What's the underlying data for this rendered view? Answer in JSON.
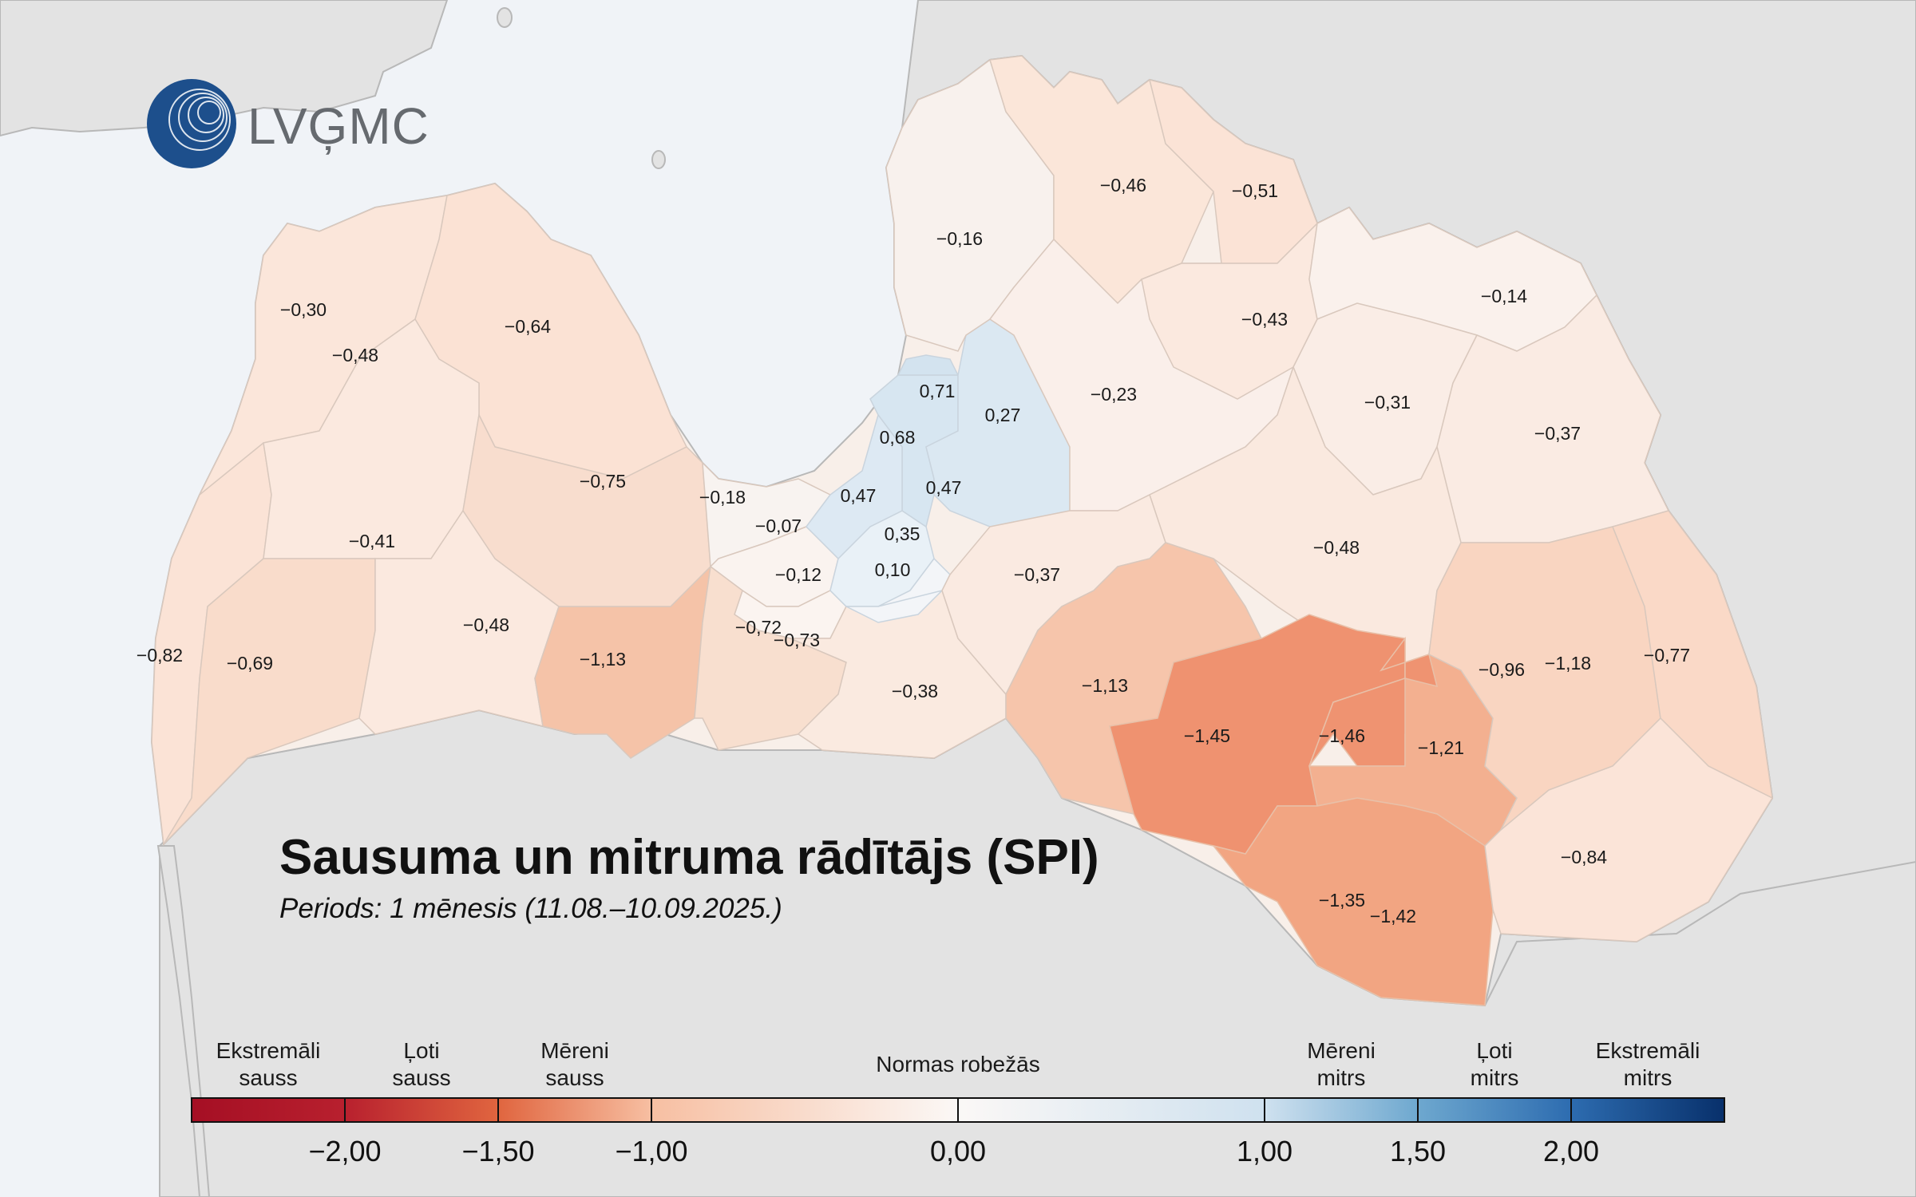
{
  "logo": {
    "text": "LVĢMC"
  },
  "title": "Sausuma un mitruma rādītājs (SPI)",
  "subtitle": "Periods: 1 mēnesis (11.08.–10.09.2025.)",
  "colors": {
    "sea": "#f0f3f7",
    "neighbor_land": "#e3e3e3",
    "border": "#b8b8b8",
    "logo_blue": "#1d4f8c"
  },
  "legend": {
    "categories": [
      {
        "line1": "Ekstremāli",
        "line2": "sauss"
      },
      {
        "line1": "Ļoti",
        "line2": "sauss"
      },
      {
        "line1": "Mēreni",
        "line2": "sauss"
      },
      {
        "line1": "Normas robežās",
        "line2": ""
      },
      {
        "line1": "Mēreni",
        "line2": "mitrs"
      },
      {
        "line1": "Ļoti",
        "line2": "mitrs"
      },
      {
        "line1": "Ekstremāli",
        "line2": "mitrs"
      }
    ],
    "ticks": [
      "−2,00",
      "−1,50",
      "−1,00",
      "0,00",
      "1,00",
      "1,50",
      "2,00"
    ],
    "tick_values": [
      -2.0,
      -1.5,
      -1.0,
      0.0,
      1.0,
      1.5,
      2.0
    ],
    "range": [
      -2.5,
      2.5
    ],
    "color_stops": [
      {
        "value": -2.5,
        "color": "#a50f24"
      },
      {
        "value": -2.0,
        "color": "#b8202e"
      },
      {
        "value": -1.5,
        "color": "#e0653f"
      },
      {
        "value": -1.0,
        "color": "#f7bfa2"
      },
      {
        "value": 0.0,
        "color": "#fbf8f6"
      },
      {
        "value": 1.0,
        "color": "#cfe1ef"
      },
      {
        "value": 1.5,
        "color": "#6ea8cf"
      },
      {
        "value": 2.0,
        "color": "#2d6cb0"
      },
      {
        "value": 2.5,
        "color": "#08306b"
      }
    ]
  },
  "regions": [
    {
      "label": "−0,30",
      "value": -0.3
    },
    {
      "label": "−0,48",
      "value": -0.48
    },
    {
      "label": "−0,64",
      "value": -0.64
    },
    {
      "label": "−0,75",
      "value": -0.75
    },
    {
      "label": "−0,41",
      "value": -0.41
    },
    {
      "label": "−0,48",
      "value": -0.48
    },
    {
      "label": "−0,82",
      "value": -0.82
    },
    {
      "label": "−0,69",
      "value": -0.69
    },
    {
      "label": "−1,13",
      "value": -1.13
    },
    {
      "label": "−0,18",
      "value": -0.18
    },
    {
      "label": "−0,07",
      "value": -0.07
    },
    {
      "label": "−0,12",
      "value": -0.12
    },
    {
      "label": "−0,72",
      "value": -0.72
    },
    {
      "label": "−0,73",
      "value": -0.73
    },
    {
      "label": "0,71",
      "value": 0.71
    },
    {
      "label": "0,68",
      "value": 0.68
    },
    {
      "label": "0,27",
      "value": 0.27
    },
    {
      "label": "0,47",
      "value": 0.47
    },
    {
      "label": "0,47",
      "value": 0.47
    },
    {
      "label": "0,35",
      "value": 0.35
    },
    {
      "label": "0,10",
      "value": 0.1
    },
    {
      "label": "−0,16",
      "value": -0.16
    },
    {
      "label": "−0,46",
      "value": -0.46
    },
    {
      "label": "−0,51",
      "value": -0.51
    },
    {
      "label": "−0,23",
      "value": -0.23
    },
    {
      "label": "−0,43",
      "value": -0.43
    },
    {
      "label": "−0,14",
      "value": -0.14
    },
    {
      "label": "−0,31",
      "value": -0.31
    },
    {
      "label": "−0,37",
      "value": -0.37
    },
    {
      "label": "−0,37",
      "value": -0.37
    },
    {
      "label": "−0,38",
      "value": -0.38
    },
    {
      "label": "−0,48",
      "value": -0.48
    },
    {
      "label": "−1,13",
      "value": -1.13
    },
    {
      "label": "−1,45",
      "value": -1.45
    },
    {
      "label": "−1,46",
      "value": -1.46
    },
    {
      "label": "−1,21",
      "value": -1.21
    },
    {
      "label": "−0,96",
      "value": -0.96
    },
    {
      "label": "−1,18",
      "value": -1.18
    },
    {
      "label": "−0,77",
      "value": -0.77
    },
    {
      "label": "−0,84",
      "value": -0.84
    },
    {
      "label": "−1,35",
      "value": -1.35
    },
    {
      "label": "−1,42",
      "value": -1.42
    }
  ]
}
